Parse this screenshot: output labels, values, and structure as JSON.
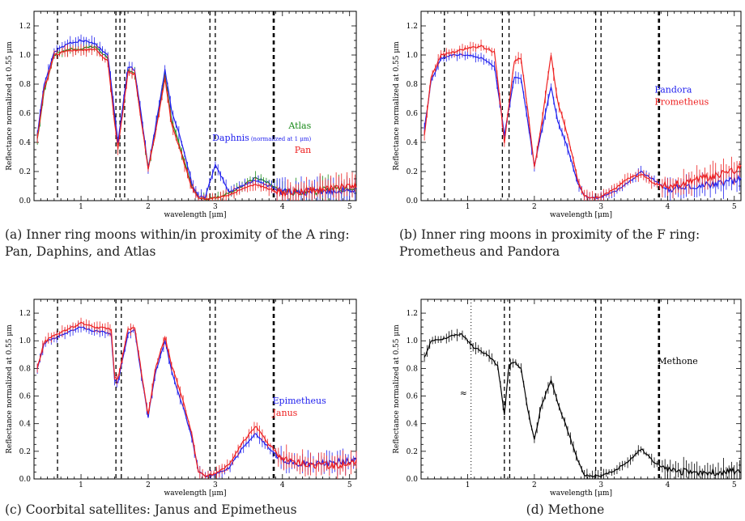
{
  "chart_data": [
    {
      "type": "line",
      "panel": "a",
      "xlabel": "wavelength [μm]",
      "ylabel": "Reflectance normalized at 0.55 μm",
      "xlim": [
        0.3,
        5.1
      ],
      "ylim": [
        0,
        1.3
      ],
      "xticks": [
        "1",
        "2",
        "3",
        "4",
        "5"
      ],
      "yticks": [
        "0.0",
        "0.2",
        "0.4",
        "0.6",
        "0.8",
        "1.0",
        "1.2"
      ],
      "dashed_lines_x": [
        0.65,
        1.52,
        1.58,
        1.65,
        2.92,
        3.0,
        3.87
      ],
      "legend": [
        {
          "name": "Atlas",
          "color": "#1a8a1a"
        },
        {
          "name": "Daphnis",
          "note": "(normalized at 1 μm)",
          "color": "#2020ee"
        },
        {
          "name": "Pan",
          "color": "#ee2020"
        }
      ],
      "series": [
        {
          "name": "Atlas",
          "color": "#1a8a1a",
          "x": [
            0.35,
            0.45,
            0.6,
            0.8,
            1.0,
            1.2,
            1.4,
            1.5,
            1.55,
            1.7,
            1.8,
            1.9,
            2.0,
            2.1,
            2.25,
            2.35,
            2.5,
            2.65,
            2.75,
            2.85,
            3.0,
            3.2,
            3.4,
            3.6,
            3.8,
            4.0,
            4.4,
            4.8,
            5.1
          ],
          "y": [
            0.42,
            0.75,
            1.0,
            1.04,
            1.04,
            1.06,
            0.98,
            0.55,
            0.38,
            0.9,
            0.88,
            0.55,
            0.23,
            0.45,
            0.86,
            0.55,
            0.33,
            0.1,
            0.02,
            0.01,
            0.02,
            0.05,
            0.1,
            0.16,
            0.12,
            0.06,
            0.06,
            0.08,
            0.1
          ]
        },
        {
          "name": "Daphnis",
          "color": "#2020ee",
          "x": [
            0.35,
            0.45,
            0.6,
            0.8,
            1.0,
            1.2,
            1.4,
            1.5,
            1.55,
            1.7,
            1.8,
            1.9,
            2.0,
            2.1,
            2.25,
            2.35,
            2.5,
            2.65,
            2.75,
            2.85,
            3.0,
            3.2,
            3.4,
            3.6,
            3.8,
            4.0,
            4.4,
            4.8,
            5.1
          ],
          "y": [
            0.45,
            0.8,
            1.02,
            1.08,
            1.1,
            1.08,
            1.0,
            0.6,
            0.4,
            0.92,
            0.9,
            0.58,
            0.22,
            0.48,
            0.9,
            0.62,
            0.4,
            0.12,
            0.03,
            0.02,
            0.25,
            0.06,
            0.1,
            0.14,
            0.1,
            0.06,
            0.06,
            0.07,
            0.08
          ]
        },
        {
          "name": "Pan",
          "color": "#ee2020",
          "x": [
            0.35,
            0.45,
            0.6,
            0.8,
            1.0,
            1.2,
            1.4,
            1.5,
            1.55,
            1.7,
            1.8,
            1.9,
            2.0,
            2.1,
            2.25,
            2.35,
            2.5,
            2.65,
            2.75,
            2.85,
            3.0,
            3.2,
            3.4,
            3.6,
            3.8,
            4.0,
            4.4,
            4.8,
            5.1
          ],
          "y": [
            0.43,
            0.76,
            1.0,
            1.03,
            1.03,
            1.04,
            0.96,
            0.53,
            0.36,
            0.88,
            0.87,
            0.54,
            0.22,
            0.44,
            0.84,
            0.52,
            0.31,
            0.09,
            0.02,
            0.01,
            0.02,
            0.04,
            0.08,
            0.11,
            0.08,
            0.05,
            0.07,
            0.09,
            0.11
          ]
        }
      ]
    },
    {
      "type": "line",
      "panel": "b",
      "xlabel": "wavelength [μm]",
      "ylabel": "Reflectance normalized at 0.55 μm",
      "xlim": [
        0.3,
        5.1
      ],
      "ylim": [
        0,
        1.3
      ],
      "xticks": [
        "1",
        "2",
        "3",
        "4",
        "5"
      ],
      "yticks": [
        "0.0",
        "0.2",
        "0.4",
        "0.6",
        "0.8",
        "1.0",
        "1.2"
      ],
      "dashed_lines_x": [
        0.65,
        1.52,
        1.62,
        2.92,
        3.0,
        3.87
      ],
      "legend": [
        {
          "name": "Pandora",
          "color": "#2020ee"
        },
        {
          "name": "Prometheus",
          "color": "#ee2020"
        }
      ],
      "series": [
        {
          "name": "Pandora",
          "color": "#2020ee",
          "x": [
            0.35,
            0.45,
            0.6,
            0.8,
            1.0,
            1.2,
            1.4,
            1.5,
            1.55,
            1.7,
            1.8,
            1.9,
            2.0,
            2.1,
            2.25,
            2.35,
            2.5,
            2.65,
            2.75,
            2.85,
            3.0,
            3.2,
            3.4,
            3.6,
            3.8,
            4.0,
            4.4,
            4.8,
            5.1
          ],
          "y": [
            0.5,
            0.82,
            0.98,
            1.0,
            1.0,
            0.98,
            0.92,
            0.62,
            0.45,
            0.85,
            0.84,
            0.55,
            0.24,
            0.46,
            0.78,
            0.55,
            0.36,
            0.12,
            0.03,
            0.02,
            0.02,
            0.06,
            0.12,
            0.2,
            0.14,
            0.08,
            0.1,
            0.12,
            0.15
          ]
        },
        {
          "name": "Prometheus",
          "color": "#ee2020",
          "x": [
            0.35,
            0.45,
            0.6,
            0.8,
            1.0,
            1.2,
            1.4,
            1.5,
            1.55,
            1.7,
            1.8,
            1.9,
            2.0,
            2.1,
            2.25,
            2.35,
            2.5,
            2.65,
            2.75,
            2.85,
            3.0,
            3.2,
            3.4,
            3.6,
            3.8,
            4.0,
            4.4,
            4.8,
            5.1
          ],
          "y": [
            0.45,
            0.85,
            1.0,
            1.02,
            1.05,
            1.06,
            1.02,
            0.62,
            0.4,
            0.96,
            0.98,
            0.62,
            0.23,
            0.5,
            1.0,
            0.68,
            0.45,
            0.14,
            0.03,
            0.02,
            0.03,
            0.08,
            0.15,
            0.18,
            0.12,
            0.1,
            0.14,
            0.18,
            0.22
          ]
        }
      ]
    },
    {
      "type": "line",
      "panel": "c",
      "xlabel": "wavelength [μm]",
      "ylabel": "Reflectance normalized at 0.55 μm",
      "xlim": [
        0.3,
        5.1
      ],
      "ylim": [
        0,
        1.3
      ],
      "xticks": [
        "1",
        "2",
        "3",
        "4",
        "5"
      ],
      "yticks": [
        "0.0",
        "0.2",
        "0.4",
        "0.6",
        "0.8",
        "1.0",
        "1.2"
      ],
      "dashed_lines_x": [
        0.65,
        1.52,
        1.6,
        2.92,
        3.0,
        3.87
      ],
      "legend": [
        {
          "name": "Epimetheus",
          "color": "#2020ee"
        },
        {
          "name": "Janus",
          "color": "#ee2020"
        }
      ],
      "series": [
        {
          "name": "Epimetheus",
          "color": "#2020ee",
          "x": [
            0.35,
            0.45,
            0.6,
            0.8,
            1.0,
            1.2,
            1.4,
            1.45,
            1.5,
            1.55,
            1.7,
            1.8,
            1.9,
            2.0,
            2.1,
            2.25,
            2.35,
            2.5,
            2.65,
            2.75,
            2.85,
            3.0,
            3.2,
            3.4,
            3.6,
            3.8,
            4.0,
            4.4,
            4.8,
            5.1
          ],
          "y": [
            0.8,
            0.98,
            1.02,
            1.06,
            1.1,
            1.07,
            1.06,
            1.05,
            0.72,
            0.7,
            1.05,
            1.08,
            0.75,
            0.45,
            0.75,
            1.0,
            0.78,
            0.55,
            0.3,
            0.05,
            0.02,
            0.03,
            0.08,
            0.22,
            0.33,
            0.22,
            0.14,
            0.1,
            0.12,
            0.13
          ]
        },
        {
          "name": "Janus",
          "color": "#ee2020",
          "x": [
            0.35,
            0.45,
            0.6,
            0.8,
            1.0,
            1.2,
            1.4,
            1.45,
            1.5,
            1.55,
            1.7,
            1.8,
            1.9,
            2.0,
            2.1,
            2.25,
            2.35,
            2.5,
            2.65,
            2.75,
            2.85,
            3.0,
            3.2,
            3.4,
            3.6,
            3.8,
            4.0,
            4.4,
            4.8,
            5.1
          ],
          "y": [
            0.8,
            0.99,
            1.04,
            1.08,
            1.13,
            1.1,
            1.09,
            1.08,
            0.74,
            0.72,
            1.08,
            1.1,
            0.77,
            0.46,
            0.78,
            1.03,
            0.82,
            0.6,
            0.32,
            0.05,
            0.02,
            0.04,
            0.1,
            0.26,
            0.38,
            0.25,
            0.15,
            0.1,
            0.1,
            0.12
          ]
        }
      ]
    },
    {
      "type": "line",
      "panel": "d",
      "xlabel": "wavelength [μm]",
      "ylabel": "Reflectance normalized at 0.55 μm",
      "xlim": [
        0.3,
        5.1
      ],
      "ylim": [
        0,
        1.3
      ],
      "xticks": [
        "1",
        "2",
        "3",
        "4",
        "5"
      ],
      "yticks": [
        "0.0",
        "0.2",
        "0.4",
        "0.6",
        "0.8",
        "1.0",
        "1.2"
      ],
      "dashed_lines_x": [
        1.55,
        1.63,
        2.92,
        3.0,
        3.87
      ],
      "dotted_lines_x": [
        1.05
      ],
      "break_mark": "≈",
      "legend": [
        {
          "name": "Methone",
          "color": "#000000"
        }
      ],
      "series": [
        {
          "name": "Methone",
          "color": "#000000",
          "x": [
            0.35,
            0.45,
            0.6,
            0.8,
            0.9,
            1.0,
            1.1,
            1.3,
            1.45,
            1.55,
            1.62,
            1.7,
            1.8,
            1.9,
            2.0,
            2.1,
            2.25,
            2.35,
            2.5,
            2.65,
            2.75,
            2.85,
            3.0,
            3.2,
            3.4,
            3.6,
            3.8,
            4.0,
            4.4,
            4.8,
            5.1
          ],
          "y": [
            0.88,
            1.0,
            1.01,
            1.04,
            1.05,
            1.0,
            0.95,
            0.9,
            0.82,
            0.47,
            0.82,
            0.85,
            0.8,
            0.5,
            0.28,
            0.52,
            0.72,
            0.55,
            0.35,
            0.14,
            0.03,
            0.02,
            0.02,
            0.06,
            0.12,
            0.22,
            0.12,
            0.06,
            0.05,
            0.05,
            0.06
          ]
        }
      ]
    }
  ],
  "captions": {
    "a": "(a) Inner ring moons within/in proximity of the A ring: Pan, Daphins, and Atlas",
    "b": "(b) Inner ring moons in proximity of the F ring: Prometheus and Pandora",
    "c": "(c) Coorbital satellites: Janus and Epimetheus",
    "d": "(d) Methone"
  }
}
